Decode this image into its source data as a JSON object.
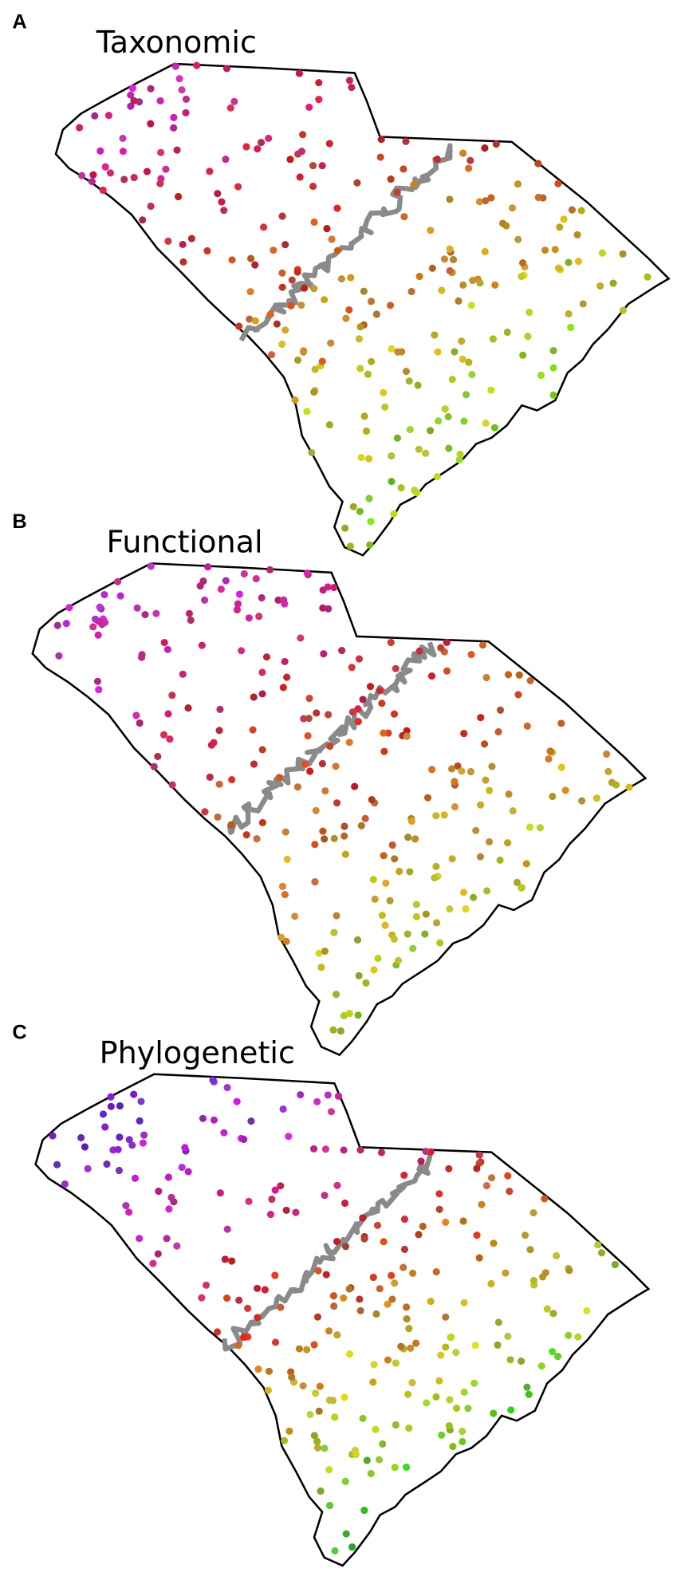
{
  "panels": [
    {
      "label": "A",
      "title": "Taxonomic"
    },
    {
      "label": "B",
      "title": "Functional"
    },
    {
      "label": "C",
      "title": "Phylogenetic"
    }
  ]
}
